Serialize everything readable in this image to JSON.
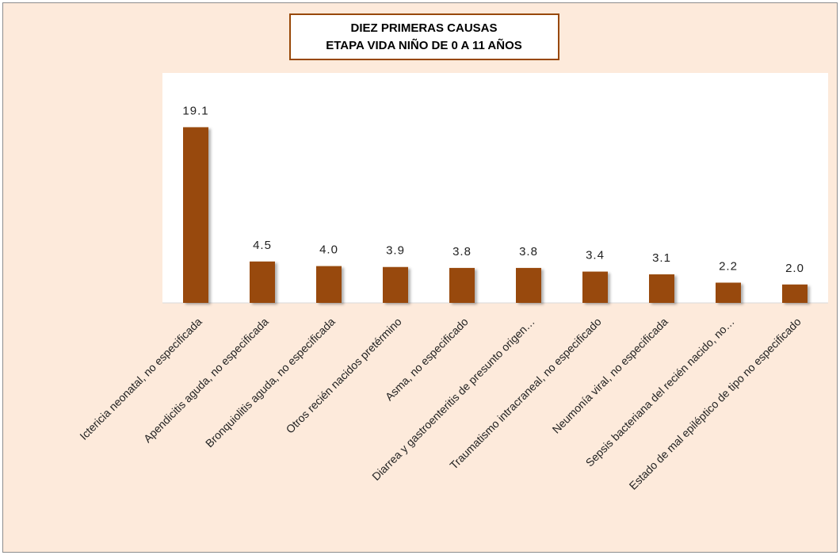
{
  "chart_data": {
    "type": "bar",
    "title": "DIEZ PRIMERAS CAUSAS",
    "subtitle": "ETAPA VIDA NIÑO DE 0 A 11 AÑOS",
    "categories": [
      "Ictericia neonatal, no especificada",
      "Apendicitis aguda, no especificada",
      "Bronquiolitis aguda, no especificada",
      "Otros recién nacidos pretérmino",
      "Asma, no especificado",
      "Diarrea y gastroenteritis de presunto origen…",
      "Traumatismo intracraneal, no especificado",
      "Neumonía viral, no especificada",
      "Sepsis bacteriana del recién nacido, no…",
      "Estado de mal epiléptico de tipo no especificado"
    ],
    "values": [
      19.1,
      4.5,
      4.0,
      3.9,
      3.8,
      3.8,
      3.4,
      3.1,
      2.2,
      2.0
    ],
    "value_labels": [
      "19.1",
      "4.5",
      "4.0",
      "3.9",
      "3.8",
      "3.8",
      "3.4",
      "3.1",
      "2.2",
      "2.0"
    ],
    "color": "#984807",
    "ylim": [
      0,
      25
    ]
  }
}
